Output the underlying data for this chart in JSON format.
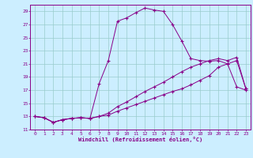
{
  "xlabel": "Windchill (Refroidissement éolien,°C)",
  "background_color": "#cceeff",
  "grid_color": "#99cccc",
  "line_color": "#880088",
  "xlim": [
    -0.5,
    23.5
  ],
  "ylim": [
    11,
    30
  ],
  "xticks": [
    0,
    1,
    2,
    3,
    4,
    5,
    6,
    7,
    8,
    9,
    10,
    11,
    12,
    13,
    14,
    15,
    16,
    17,
    18,
    19,
    20,
    21,
    22,
    23
  ],
  "yticks": [
    11,
    13,
    15,
    17,
    19,
    21,
    23,
    25,
    27,
    29
  ],
  "series1_x": [
    0,
    1,
    2,
    3,
    4,
    5,
    6,
    7,
    8,
    9,
    10,
    11,
    12,
    13,
    14,
    15,
    16,
    17,
    18,
    19,
    20,
    21,
    22,
    23
  ],
  "series1_y": [
    13.0,
    12.8,
    12.1,
    12.5,
    12.7,
    12.8,
    12.7,
    18.0,
    21.5,
    27.5,
    28.0,
    28.8,
    29.5,
    29.2,
    29.0,
    27.0,
    24.5,
    21.8,
    21.5,
    21.4,
    21.5,
    21.0,
    17.5,
    17.0
  ],
  "series2_x": [
    0,
    1,
    2,
    3,
    4,
    5,
    6,
    7,
    8,
    9,
    10,
    11,
    12,
    13,
    14,
    15,
    16,
    17,
    18,
    19,
    20,
    21,
    22,
    23
  ],
  "series2_y": [
    13.0,
    12.8,
    12.1,
    12.5,
    12.7,
    12.8,
    12.7,
    13.0,
    13.5,
    14.5,
    15.2,
    16.0,
    16.8,
    17.5,
    18.2,
    19.0,
    19.8,
    20.5,
    21.0,
    21.5,
    21.8,
    21.5,
    22.0,
    17.2
  ],
  "series3_x": [
    0,
    1,
    2,
    3,
    4,
    5,
    6,
    7,
    8,
    9,
    10,
    11,
    12,
    13,
    14,
    15,
    16,
    17,
    18,
    19,
    20,
    21,
    22,
    23
  ],
  "series3_y": [
    13.0,
    12.8,
    12.1,
    12.5,
    12.7,
    12.8,
    12.7,
    13.0,
    13.2,
    13.8,
    14.3,
    14.8,
    15.3,
    15.8,
    16.3,
    16.8,
    17.2,
    17.8,
    18.5,
    19.2,
    20.5,
    21.0,
    21.5,
    17.2
  ]
}
